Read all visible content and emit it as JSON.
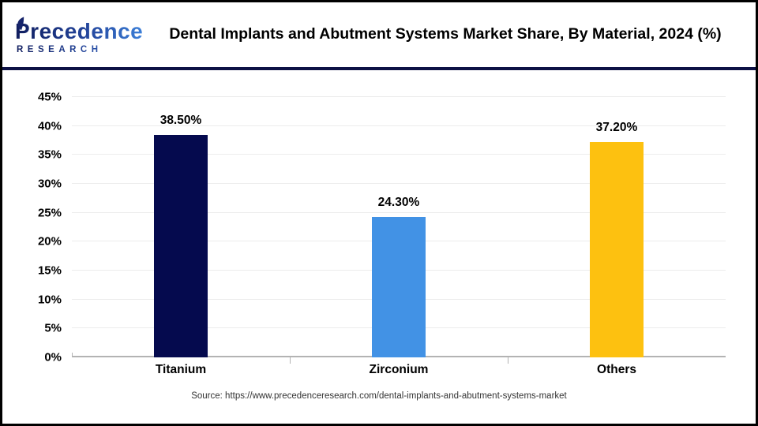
{
  "header": {
    "logo": {
      "line1": "Precedence",
      "line2": "RESEARCH"
    },
    "title": "Dental Implants and Abutment Systems Market Share, By Material, 2024 (%)"
  },
  "chart_data": {
    "type": "bar",
    "title": "Dental Implants and Abutment Systems Market Share, By Material, 2024 (%)",
    "categories": [
      "Titanium",
      "Zirconium",
      "Others"
    ],
    "values": [
      38.5,
      24.3,
      37.2
    ],
    "value_labels": [
      "38.50%",
      "24.30%",
      "37.20%"
    ],
    "bar_colors": [
      "#050a4e",
      "#4292e5",
      "#fdc110"
    ],
    "ylim": [
      0,
      45
    ],
    "ytick_step": 5,
    "ytick_labels": [
      "0%",
      "5%",
      "10%",
      "15%",
      "20%",
      "25%",
      "30%",
      "35%",
      "40%",
      "45%"
    ],
    "grid": true,
    "legend_position": "none",
    "xlabel": "",
    "ylabel": ""
  },
  "footer": {
    "source": "Source: https://www.precedenceresearch.com/dental-implants-and-abutment-systems-market"
  },
  "colors": {
    "divider": "#0d1145",
    "axis": "#b3b3b3",
    "gridline": "#ececec",
    "logo_navy": "#101d5e",
    "logo_blue": "#3f86df"
  }
}
